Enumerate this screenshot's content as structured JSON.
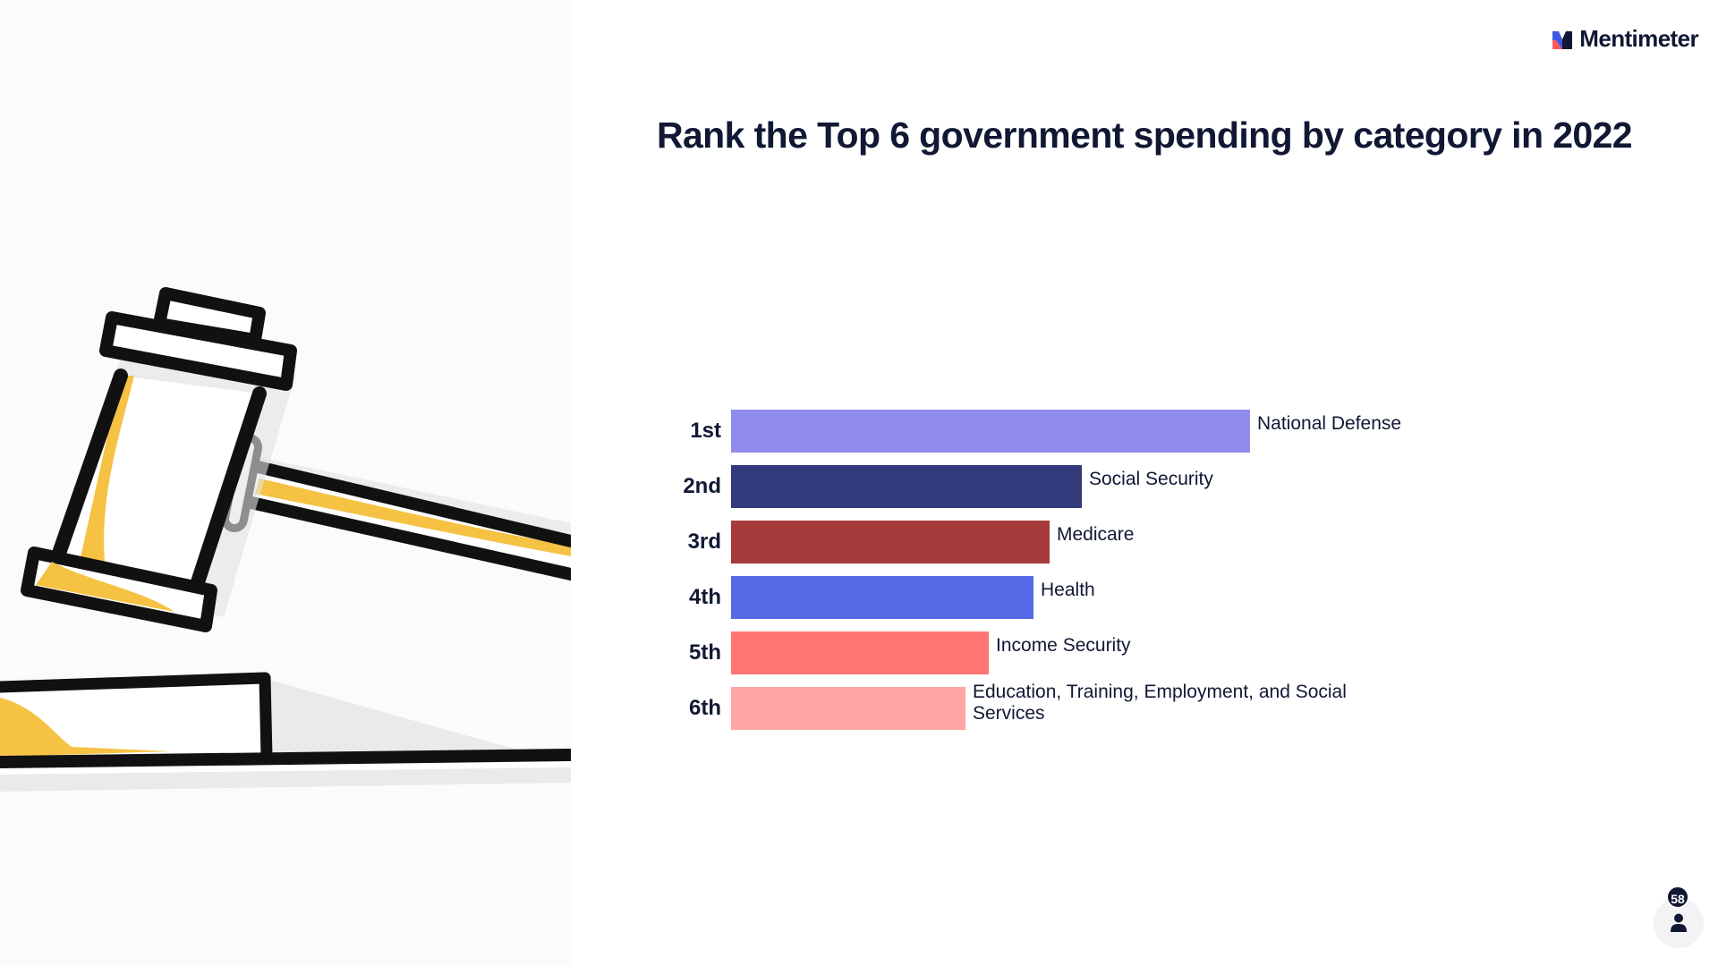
{
  "brand": {
    "name": "Mentimeter",
    "icon": "mentimeter-logo-icon"
  },
  "question": {
    "title": "Rank the Top 6 government spending by category in 2022"
  },
  "colors": {
    "text": "#101834",
    "bar_1": "#8f8cec",
    "bar_2": "#323a7b",
    "bar_3": "#a63b3b",
    "bar_4": "#5869e6",
    "bar_5": "#ff7572",
    "bar_6": "#ffa6a4"
  },
  "ranking": {
    "items": [
      {
        "rank": "1st",
        "name": "National Defense",
        "score": 100,
        "color": "#8f8cec"
      },
      {
        "rank": "2nd",
        "name": "Social Security",
        "score": 67.5,
        "color": "#323a7b"
      },
      {
        "rank": "3rd",
        "name": "Medicare",
        "score": 61.3,
        "color": "#a63b3b"
      },
      {
        "rank": "4th",
        "name": "Health",
        "score": 58.3,
        "color": "#5869e6"
      },
      {
        "rank": "5th",
        "name": "Income Security",
        "score": 49.7,
        "color": "#ff7572"
      },
      {
        "rank": "6th",
        "name": "Education, Training, Employment, and Social Services",
        "score": 45.2,
        "color": "#ffa6a4"
      }
    ]
  },
  "participants": {
    "count": "58",
    "icon": "person-icon"
  },
  "illustration": {
    "icon": "gavel-illustration"
  }
}
